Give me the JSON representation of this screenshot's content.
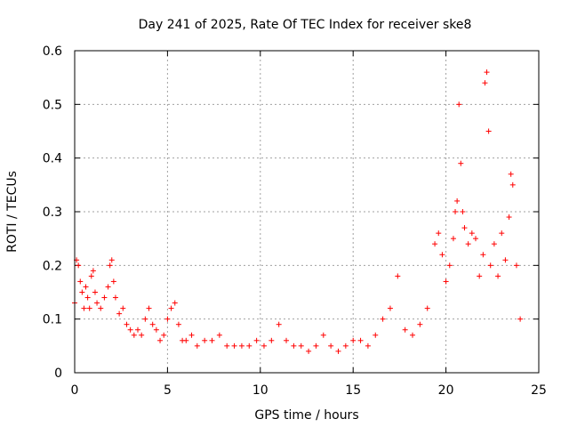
{
  "chart_data": {
    "type": "scatter",
    "title": "Day 241 of 2025, Rate Of TEC Index for receiver ske8",
    "xlabel": "GPS time / hours",
    "ylabel": "ROTI / TECUs",
    "xlim": [
      0,
      25
    ],
    "ylim": [
      0,
      0.6
    ],
    "xticks": [
      0,
      5,
      10,
      15,
      20,
      25
    ],
    "yticks": [
      0,
      0.1,
      0.2,
      0.3,
      0.4,
      0.5,
      0.6
    ],
    "xtick_labels": [
      "0",
      "5",
      "10",
      "15",
      "20",
      "25"
    ],
    "ytick_labels": [
      "0",
      "0.1",
      "0.2",
      "0.3",
      "0.4",
      "0.5",
      "0.6"
    ],
    "grid": true,
    "marker": "+",
    "color": "#ff0000",
    "series": [
      {
        "name": "ROTI",
        "x": [
          0.0,
          0.1,
          0.2,
          0.3,
          0.4,
          0.5,
          0.6,
          0.7,
          0.8,
          0.9,
          1.0,
          1.1,
          1.2,
          1.4,
          1.6,
          1.8,
          1.9,
          2.0,
          2.1,
          2.2,
          2.4,
          2.6,
          2.8,
          3.0,
          3.2,
          3.4,
          3.6,
          3.8,
          4.0,
          4.2,
          4.4,
          4.6,
          4.8,
          5.0,
          5.2,
          5.4,
          5.6,
          5.8,
          6.0,
          6.3,
          6.6,
          7.0,
          7.4,
          7.8,
          8.2,
          8.6,
          9.0,
          9.4,
          9.8,
          10.2,
          10.6,
          11.0,
          11.4,
          11.8,
          12.2,
          12.6,
          13.0,
          13.4,
          13.8,
          14.2,
          14.6,
          15.0,
          15.4,
          15.8,
          16.2,
          16.6,
          17.0,
          17.4,
          17.8,
          18.2,
          18.6,
          19.0,
          19.4,
          19.6,
          19.8,
          20.0,
          20.2,
          20.4,
          20.5,
          20.6,
          20.7,
          20.8,
          20.9,
          21.0,
          21.2,
          21.4,
          21.6,
          21.8,
          22.0,
          22.1,
          22.2,
          22.3,
          22.4,
          22.6,
          22.8,
          23.0,
          23.2,
          23.4,
          23.5,
          23.6,
          23.8,
          24.0
        ],
        "y": [
          0.13,
          0.21,
          0.2,
          0.17,
          0.15,
          0.12,
          0.16,
          0.14,
          0.12,
          0.18,
          0.19,
          0.15,
          0.13,
          0.12,
          0.14,
          0.16,
          0.2,
          0.21,
          0.17,
          0.14,
          0.11,
          0.12,
          0.09,
          0.08,
          0.07,
          0.08,
          0.07,
          0.1,
          0.12,
          0.09,
          0.08,
          0.06,
          0.07,
          0.1,
          0.12,
          0.13,
          0.09,
          0.06,
          0.06,
          0.07,
          0.05,
          0.06,
          0.06,
          0.07,
          0.05,
          0.05,
          0.05,
          0.05,
          0.06,
          0.05,
          0.06,
          0.09,
          0.06,
          0.05,
          0.05,
          0.04,
          0.05,
          0.07,
          0.05,
          0.04,
          0.05,
          0.06,
          0.06,
          0.05,
          0.07,
          0.1,
          0.12,
          0.18,
          0.08,
          0.07,
          0.09,
          0.12,
          0.24,
          0.26,
          0.22,
          0.17,
          0.2,
          0.25,
          0.3,
          0.32,
          0.5,
          0.39,
          0.3,
          0.27,
          0.24,
          0.26,
          0.25,
          0.18,
          0.22,
          0.54,
          0.56,
          0.45,
          0.2,
          0.24,
          0.18,
          0.26,
          0.21,
          0.29,
          0.37,
          0.35,
          0.2,
          0.1
        ]
      }
    ]
  }
}
